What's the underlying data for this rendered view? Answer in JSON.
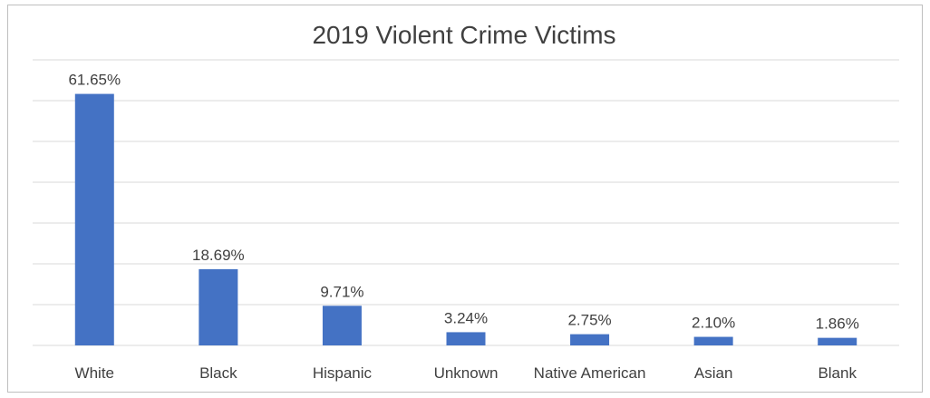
{
  "chart_data": {
    "type": "bar",
    "title": "2019 Violent Crime Victims",
    "categories": [
      "White",
      "Black",
      "Hispanic",
      "Unknown",
      "Native American",
      "Asian",
      "Blank"
    ],
    "values": [
      61.65,
      18.69,
      9.71,
      3.24,
      2.75,
      2.1,
      1.86
    ],
    "data_labels": [
      "61.65%",
      "18.69%",
      "9.71%",
      "3.24%",
      "2.75%",
      "2.10%",
      "1.86%"
    ],
    "ylim": [
      0,
      70
    ],
    "grid": true,
    "bar_color": "#4472c4",
    "grid_color": "#d9d9d9",
    "text_color": "#404040"
  }
}
